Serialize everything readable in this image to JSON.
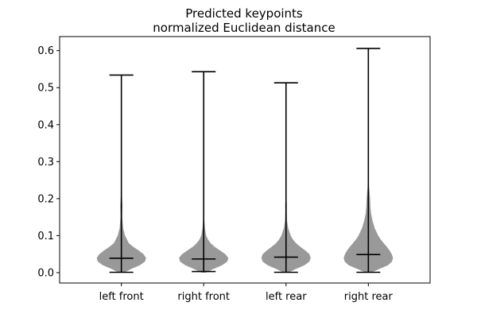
{
  "chart_data": {
    "type": "violin",
    "title_line1": "Predicted keypoints",
    "title_line2": "normalized Euclidean distance",
    "categories": [
      "left front",
      "right front",
      "left rear",
      "right rear"
    ],
    "ylim": [
      -0.028,
      0.638
    ],
    "yticks": [
      0.0,
      0.1,
      0.2,
      0.3,
      0.4,
      0.5,
      0.6
    ],
    "ytick_labels": [
      "0.0",
      "0.1",
      "0.2",
      "0.3",
      "0.4",
      "0.5",
      "0.6"
    ],
    "violin_color": "#999999",
    "series": [
      {
        "min": 0.001,
        "max": 0.534,
        "median": 0.039,
        "profile": [
          [
            0.0,
            0.1
          ],
          [
            0.01,
            0.4
          ],
          [
            0.02,
            0.75
          ],
          [
            0.03,
            0.96
          ],
          [
            0.04,
            1.0
          ],
          [
            0.05,
            0.9
          ],
          [
            0.06,
            0.7
          ],
          [
            0.07,
            0.48
          ],
          [
            0.08,
            0.3
          ],
          [
            0.1,
            0.15
          ],
          [
            0.12,
            0.07
          ],
          [
            0.15,
            0.035
          ],
          [
            0.18,
            0.045
          ],
          [
            0.2,
            0.03
          ],
          [
            0.22,
            0.008
          ],
          [
            0.25,
            0.002
          ],
          [
            0.534,
            0.0
          ]
        ]
      },
      {
        "min": 0.003,
        "max": 0.543,
        "median": 0.037,
        "profile": [
          [
            0.0,
            0.08
          ],
          [
            0.01,
            0.4
          ],
          [
            0.02,
            0.75
          ],
          [
            0.03,
            0.96
          ],
          [
            0.04,
            1.0
          ],
          [
            0.05,
            0.88
          ],
          [
            0.06,
            0.66
          ],
          [
            0.07,
            0.44
          ],
          [
            0.08,
            0.28
          ],
          [
            0.09,
            0.17
          ],
          [
            0.1,
            0.1
          ],
          [
            0.12,
            0.05
          ],
          [
            0.15,
            0.015
          ],
          [
            0.18,
            0.005
          ],
          [
            0.543,
            0.0
          ]
        ]
      },
      {
        "min": 0.001,
        "max": 0.513,
        "median": 0.042,
        "profile": [
          [
            0.0,
            0.1
          ],
          [
            0.01,
            0.4
          ],
          [
            0.02,
            0.75
          ],
          [
            0.03,
            0.95
          ],
          [
            0.04,
            1.0
          ],
          [
            0.05,
            0.95
          ],
          [
            0.06,
            0.78
          ],
          [
            0.07,
            0.58
          ],
          [
            0.08,
            0.4
          ],
          [
            0.09,
            0.28
          ],
          [
            0.1,
            0.19
          ],
          [
            0.12,
            0.09
          ],
          [
            0.14,
            0.04
          ],
          [
            0.17,
            0.03
          ],
          [
            0.18,
            0.035
          ],
          [
            0.2,
            0.02
          ],
          [
            0.22,
            0.005
          ],
          [
            0.513,
            0.0
          ]
        ]
      },
      {
        "min": 0.001,
        "max": 0.606,
        "median": 0.049,
        "profile": [
          [
            0.0,
            0.1
          ],
          [
            0.01,
            0.45
          ],
          [
            0.02,
            0.8
          ],
          [
            0.03,
            0.96
          ],
          [
            0.04,
            1.0
          ],
          [
            0.05,
            0.95
          ],
          [
            0.06,
            0.86
          ],
          [
            0.07,
            0.75
          ],
          [
            0.08,
            0.62
          ],
          [
            0.09,
            0.5
          ],
          [
            0.1,
            0.4
          ],
          [
            0.12,
            0.26
          ],
          [
            0.14,
            0.17
          ],
          [
            0.16,
            0.11
          ],
          [
            0.18,
            0.08
          ],
          [
            0.2,
            0.07
          ],
          [
            0.22,
            0.045
          ],
          [
            0.24,
            0.015
          ],
          [
            0.27,
            0.005
          ],
          [
            0.606,
            0.0
          ]
        ]
      }
    ]
  }
}
